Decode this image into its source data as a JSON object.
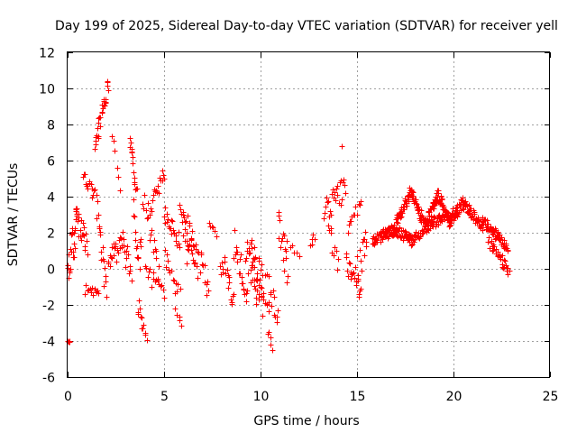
{
  "chart_data": {
    "type": "scatter",
    "title": "Day 199 of 2025, Sidereal Day-to-day VTEC variation (SDTVAR) for receiver yell",
    "xlabel": "GPS time / hours",
    "ylabel": "SDTVAR / TECUs",
    "xlim": [
      0,
      25
    ],
    "ylim": [
      -6,
      12
    ],
    "xticks": [
      "0",
      "5",
      "10",
      "15",
      "20",
      "25"
    ],
    "yticks": [
      "-6",
      "-4",
      "-2",
      "0",
      "2",
      "4",
      "6",
      "8",
      "10",
      "12"
    ],
    "grid": true,
    "marker": "+",
    "series": [
      {
        "name": "SDTVAR",
        "color": "#ff0000",
        "segments": [
          {
            "x0": 0.0,
            "x1": 0.1,
            "y0": -4.0,
            "y1": -4.1,
            "spread": 0.1,
            "n": 4
          },
          {
            "x0": 0.0,
            "x1": 0.5,
            "y0": 0.2,
            "y1": 2.5,
            "spread": 1.2,
            "n": 25
          },
          {
            "x0": 0.4,
            "x1": 1.0,
            "y0": 2.8,
            "y1": 1.2,
            "spread": 0.8,
            "n": 22
          },
          {
            "x0": 0.8,
            "x1": 1.4,
            "y0": 5.2,
            "y1": 4.0,
            "spread": 0.4,
            "n": 15
          },
          {
            "x0": 0.9,
            "x1": 1.6,
            "y0": -1.2,
            "y1": -1.4,
            "spread": 0.3,
            "n": 14
          },
          {
            "x0": 1.4,
            "x1": 2.1,
            "y0": 6.8,
            "y1": 10.3,
            "spread": 0.5,
            "n": 28
          },
          {
            "x0": 1.5,
            "x1": 2.0,
            "y0": 3.9,
            "y1": -1.2,
            "spread": 0.8,
            "n": 18
          },
          {
            "x0": 2.1,
            "x1": 2.8,
            "y0": 0.5,
            "y1": 1.3,
            "spread": 0.6,
            "n": 20
          },
          {
            "x0": 2.3,
            "x1": 2.7,
            "y0": 7.5,
            "y1": 4.6,
            "spread": 0.3,
            "n": 6
          },
          {
            "x0": 2.8,
            "x1": 3.3,
            "y0": 1.4,
            "y1": 0.0,
            "spread": 0.8,
            "n": 14
          },
          {
            "x0": 3.2,
            "x1": 3.6,
            "y0": 7.2,
            "y1": 4.2,
            "spread": 0.4,
            "n": 16
          },
          {
            "x0": 3.4,
            "x1": 3.8,
            "y0": 3.0,
            "y1": 0.5,
            "spread": 1.0,
            "n": 14
          },
          {
            "x0": 3.6,
            "x1": 4.1,
            "y0": -2.0,
            "y1": -3.4,
            "spread": 0.6,
            "n": 12
          },
          {
            "x0": 3.9,
            "x1": 4.7,
            "y0": 4.2,
            "y1": 0.0,
            "spread": 0.8,
            "n": 18
          },
          {
            "x0": 4.3,
            "x1": 5.0,
            "y0": 3.6,
            "y1": 5.4,
            "spread": 0.5,
            "n": 16
          },
          {
            "x0": 4.0,
            "x1": 5.0,
            "y0": -0.2,
            "y1": -1.2,
            "spread": 0.5,
            "n": 16
          },
          {
            "x0": 5.0,
            "x1": 5.8,
            "y0": 3.0,
            "y1": 1.5,
            "spread": 0.5,
            "n": 22
          },
          {
            "x0": 5.0,
            "x1": 5.8,
            "y0": 0.3,
            "y1": -1.0,
            "spread": 0.8,
            "n": 14
          },
          {
            "x0": 5.6,
            "x1": 5.9,
            "y0": -2.4,
            "y1": -3.0,
            "spread": 0.3,
            "n": 5
          },
          {
            "x0": 5.8,
            "x1": 6.6,
            "y0": 3.0,
            "y1": 1.0,
            "spread": 0.9,
            "n": 22
          },
          {
            "x0": 6.0,
            "x1": 7.3,
            "y0": 1.5,
            "y1": -0.8,
            "spread": 1.0,
            "n": 30
          },
          {
            "x0": 7.3,
            "x1": 7.7,
            "y0": 2.5,
            "y1": 2.0,
            "spread": 0.3,
            "n": 6
          },
          {
            "x0": 7.9,
            "x1": 8.6,
            "y0": 0.5,
            "y1": -1.5,
            "spread": 0.8,
            "n": 18
          },
          {
            "x0": 8.6,
            "x1": 9.3,
            "y0": 1.5,
            "y1": -1.5,
            "spread": 1.0,
            "n": 20
          },
          {
            "x0": 9.2,
            "x1": 10.1,
            "y0": 1.0,
            "y1": -2.0,
            "spread": 1.0,
            "n": 30
          },
          {
            "x0": 9.5,
            "x1": 10.4,
            "y0": 1.0,
            "y1": -1.5,
            "spread": 0.9,
            "n": 24
          },
          {
            "x0": 10.4,
            "x1": 10.9,
            "y0": -1.0,
            "y1": -3.0,
            "spread": 0.8,
            "n": 12
          },
          {
            "x0": 10.4,
            "x1": 10.6,
            "y0": -3.6,
            "y1": -4.2,
            "spread": 0.3,
            "n": 5
          },
          {
            "x0": 10.9,
            "x1": 11.4,
            "y0": 2.5,
            "y1": 0.0,
            "spread": 1.0,
            "n": 16
          },
          {
            "x0": 11.4,
            "x1": 12.0,
            "y0": 1.8,
            "y1": 0.5,
            "spread": 0.4,
            "n": 6
          },
          {
            "x0": 12.6,
            "x1": 12.8,
            "y0": 1.3,
            "y1": 1.8,
            "spread": 0.3,
            "n": 5
          },
          {
            "x0": 13.3,
            "x1": 14.4,
            "y0": 3.2,
            "y1": 4.5,
            "spread": 0.7,
            "n": 26
          },
          {
            "x0": 13.5,
            "x1": 14.0,
            "y0": 2.5,
            "y1": 0.0,
            "spread": 0.7,
            "n": 10
          },
          {
            "x0": 14.2,
            "x1": 14.3,
            "y0": 6.9,
            "y1": 6.9,
            "spread": 0.1,
            "n": 1
          },
          {
            "x0": 14.4,
            "x1": 15.2,
            "y0": 0.5,
            "y1": -1.0,
            "spread": 0.7,
            "n": 20
          },
          {
            "x0": 14.5,
            "x1": 15.2,
            "y0": 2.0,
            "y1": 3.8,
            "spread": 0.4,
            "n": 12
          },
          {
            "x0": 15.0,
            "x1": 15.5,
            "y0": 0.0,
            "y1": 1.5,
            "spread": 0.8,
            "n": 14
          },
          {
            "x0": 15.8,
            "x1": 17.0,
            "y0": 1.6,
            "y1": 2.2,
            "spread": 0.3,
            "n": 70
          },
          {
            "x0": 16.9,
            "x1": 17.8,
            "y0": 2.2,
            "y1": 1.6,
            "spread": 0.3,
            "n": 40
          },
          {
            "x0": 17.0,
            "x1": 17.8,
            "y0": 2.5,
            "y1": 4.4,
            "spread": 0.3,
            "n": 42
          },
          {
            "x0": 17.8,
            "x1": 18.5,
            "y0": 4.3,
            "y1": 2.4,
            "spread": 0.3,
            "n": 40
          },
          {
            "x0": 17.8,
            "x1": 19.0,
            "y0": 1.6,
            "y1": 2.6,
            "spread": 0.3,
            "n": 50
          },
          {
            "x0": 18.5,
            "x1": 19.2,
            "y0": 2.4,
            "y1": 4.2,
            "spread": 0.3,
            "n": 40
          },
          {
            "x0": 19.0,
            "x1": 20.2,
            "y0": 2.6,
            "y1": 3.2,
            "spread": 0.3,
            "n": 50
          },
          {
            "x0": 19.2,
            "x1": 19.8,
            "y0": 4.1,
            "y1": 2.6,
            "spread": 0.3,
            "n": 35
          },
          {
            "x0": 19.8,
            "x1": 20.5,
            "y0": 2.6,
            "y1": 3.7,
            "spread": 0.3,
            "n": 40
          },
          {
            "x0": 20.5,
            "x1": 21.5,
            "y0": 3.6,
            "y1": 2.4,
            "spread": 0.3,
            "n": 50
          },
          {
            "x0": 21.5,
            "x1": 22.3,
            "y0": 2.6,
            "y1": 1.8,
            "spread": 0.3,
            "n": 40
          },
          {
            "x0": 22.3,
            "x1": 22.8,
            "y0": 2.0,
            "y1": 1.0,
            "spread": 0.3,
            "n": 25
          },
          {
            "x0": 21.8,
            "x1": 22.9,
            "y0": 1.5,
            "y1": -0.2,
            "spread": 0.3,
            "n": 35
          }
        ]
      }
    ]
  }
}
